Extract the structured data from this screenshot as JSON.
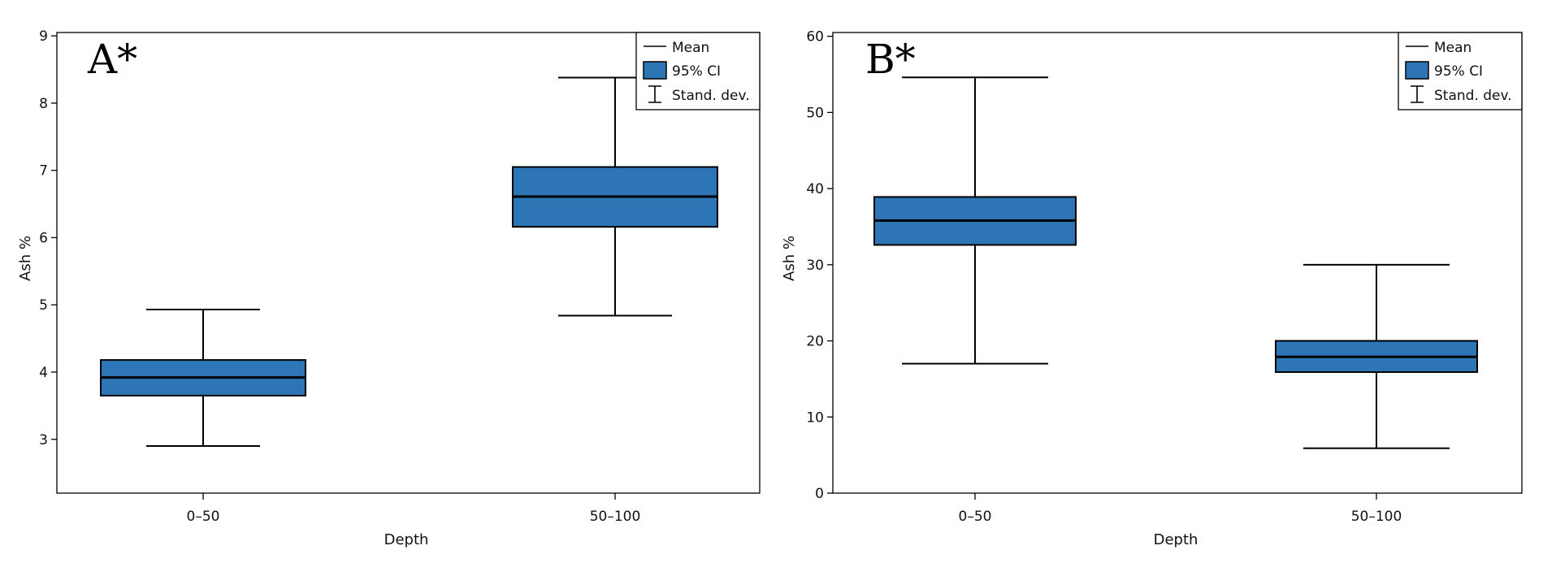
{
  "chart_data": [
    {
      "type": "box",
      "panel_label": "A*",
      "xlabel": "Depth",
      "ylabel": "Ash %",
      "categories": [
        "0–50",
        "50–100"
      ],
      "ylim": [
        2.2,
        9.05
      ],
      "yticks": [
        3,
        4,
        5,
        6,
        7,
        8,
        9
      ],
      "groups": [
        {
          "category": "0–50",
          "mean": 3.92,
          "ci_low": 3.65,
          "ci_high": 4.18,
          "sd_low": 2.9,
          "sd_high": 4.93
        },
        {
          "category": "50–100",
          "mean": 6.61,
          "ci_low": 6.16,
          "ci_high": 7.05,
          "sd_low": 4.84,
          "sd_high": 8.38
        }
      ],
      "legend": {
        "placement": "top-right",
        "mean": "Mean",
        "ci": "95% CI",
        "sd": "Stand. dev."
      }
    },
    {
      "type": "box",
      "panel_label": "B*",
      "xlabel": "Depth",
      "ylabel": "Ash %",
      "categories": [
        "0–50",
        "50–100"
      ],
      "ylim": [
        0,
        60.5
      ],
      "yticks": [
        0,
        10,
        20,
        30,
        40,
        50,
        60
      ],
      "groups": [
        {
          "category": "0–50",
          "mean": 35.8,
          "ci_low": 32.6,
          "ci_high": 38.9,
          "sd_low": 17.0,
          "sd_high": 54.6
        },
        {
          "category": "50–100",
          "mean": 17.9,
          "ci_low": 15.9,
          "ci_high": 20.0,
          "sd_low": 5.9,
          "sd_high": 30.0
        }
      ],
      "legend": {
        "placement": "top-right",
        "mean": "Mean",
        "ci": "95% CI",
        "sd": "Stand. dev."
      }
    }
  ],
  "colors": {
    "box_fill": "#2e75b6",
    "stroke": "#000000"
  }
}
